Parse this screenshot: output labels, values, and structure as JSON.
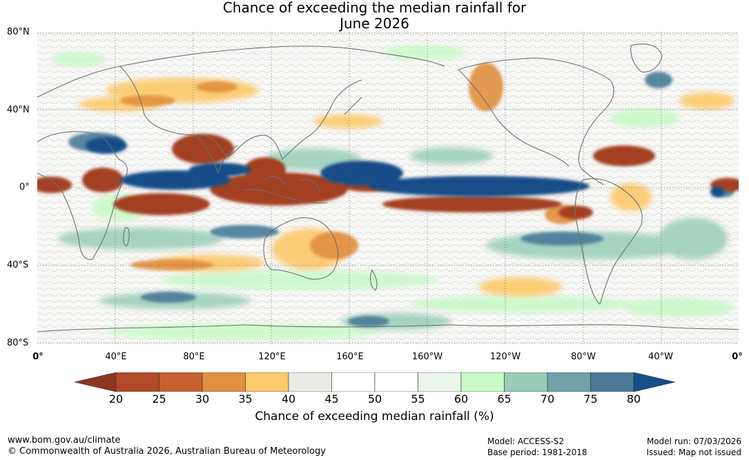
{
  "title_line1": "Chance of exceeding the median rainfall for",
  "title_line2": "June 2026",
  "lat_labels": [
    "80°N",
    "40°N",
    "0°",
    "40°S",
    "80°S"
  ],
  "lon_labels": [
    "0°",
    "40°E",
    "80°E",
    "120°E",
    "160°E",
    "160°W",
    "120°W",
    "80°W",
    "40°W",
    "0°"
  ],
  "colorbar": {
    "ticks": [
      "20",
      "25",
      "30",
      "35",
      "40",
      "45",
      "50",
      "55",
      "60",
      "65",
      "70",
      "75",
      "80"
    ],
    "colors": [
      "#8e3520",
      "#b04a28",
      "#c8622f",
      "#e09040",
      "#fdc96a",
      "#ebebe6",
      "#ffffff",
      "#ffffff",
      "#eaf6ea",
      "#c8fac6",
      "#9acdb8",
      "#70a3aa",
      "#4a7a98",
      "#154e88"
    ],
    "label": "Chance of exceeding median rainfall (%)"
  },
  "footer": {
    "url": "www.bom.gov.au/climate",
    "copyright": "© Commonwealth of Australia 2026, Australian Bureau of Meteorology",
    "model": "Model: ACCESS-S2",
    "base_period": "Base period: 1981-2018",
    "model_run": "Model run: 07/03/2026",
    "issued": "Issued: Map not issued"
  }
}
